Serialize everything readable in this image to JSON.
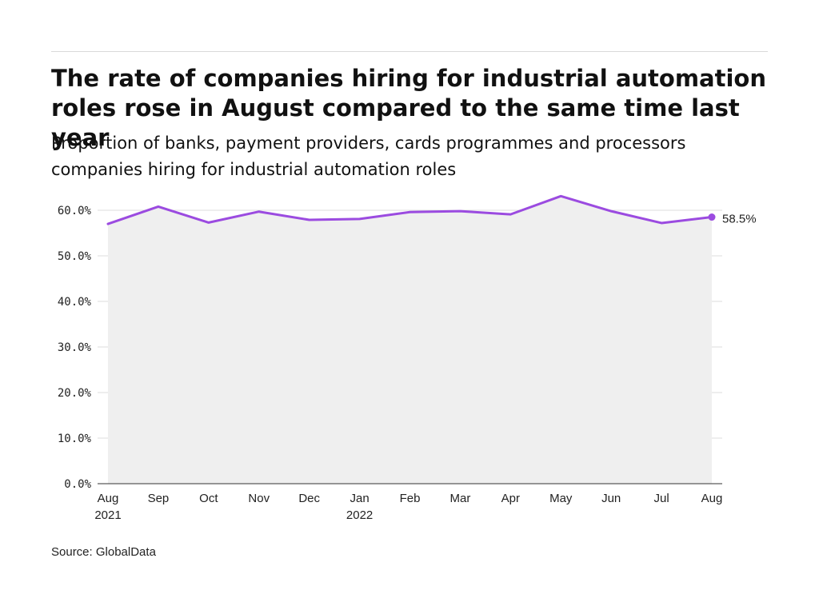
{
  "header": {
    "title": "The rate of companies hiring for industrial automation roles rose in August compared to the same time last year",
    "subtitle": "Proportion of banks, payment providers, cards programmes and processors companies hiring for industrial automation roles"
  },
  "footer": {
    "source": "Source: GlobalData"
  },
  "chart_data": {
    "type": "area",
    "title": "The rate of companies hiring for industrial automation roles rose in August compared to the same time last year",
    "subtitle": "Proportion of banks, payment providers, cards programmes and processors companies hiring for industrial automation roles",
    "xlabel": "",
    "ylabel": "",
    "categories": [
      [
        "Aug",
        "2021"
      ],
      [
        "Sep"
      ],
      [
        "Oct"
      ],
      [
        "Nov"
      ],
      [
        "Dec"
      ],
      [
        "Jan",
        "2022"
      ],
      [
        "Feb"
      ],
      [
        "Mar"
      ],
      [
        "Apr"
      ],
      [
        "May"
      ],
      [
        "Jun"
      ],
      [
        "Jul"
      ],
      [
        "Aug"
      ]
    ],
    "values": [
      57.0,
      60.8,
      57.3,
      59.7,
      57.9,
      58.1,
      59.6,
      59.8,
      59.1,
      63.1,
      59.8,
      57.2,
      58.5
    ],
    "ylim": [
      0,
      60
    ],
    "yticks": [
      0,
      10,
      20,
      30,
      40,
      50,
      60
    ],
    "ytick_labels": [
      "0.0%",
      "10.0%",
      "20.0%",
      "30.0%",
      "40.0%",
      "50.0%",
      "60.0%"
    ],
    "end_label": "58.5%",
    "grid": true,
    "colors": {
      "line": "#9b4be0",
      "area": "#efefef",
      "grid": "#dddddd",
      "axis": "#333333"
    }
  }
}
